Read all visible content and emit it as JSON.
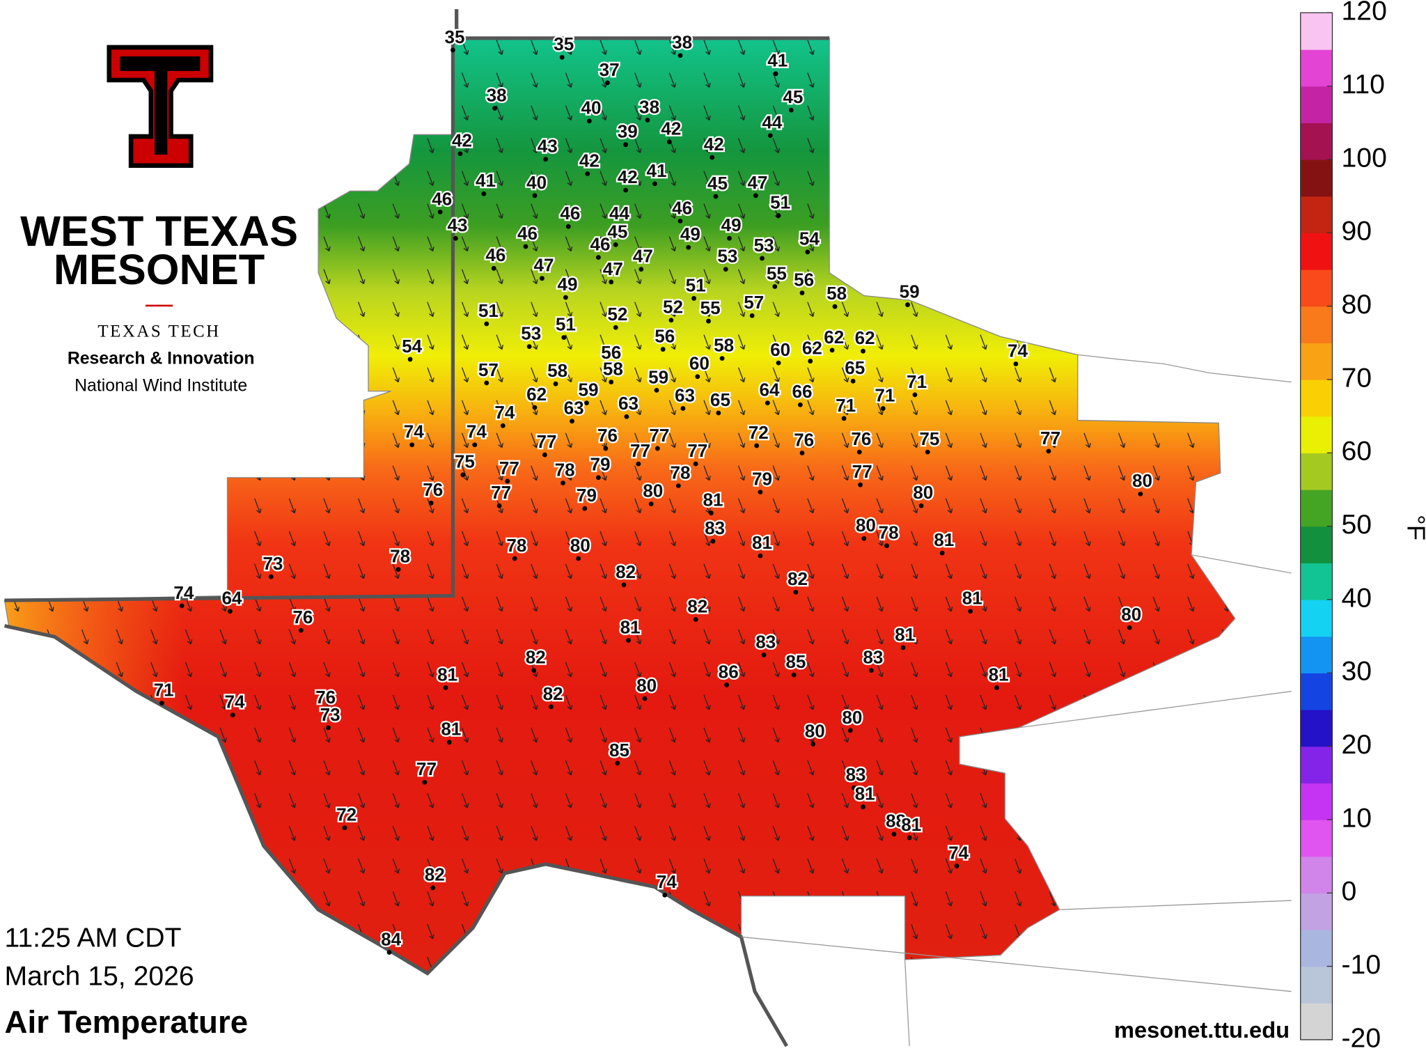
{
  "branding": {
    "name_line1": "WEST TEXAS",
    "name_line2": "MESONET",
    "org": "TEXAS TECH",
    "dept": "Research & Innovation",
    "institute": "National Wind Institute"
  },
  "timestamp": {
    "time": "11:25 AM CDT",
    "date": "March 15, 2026"
  },
  "product": "Air Temperature",
  "url": "mesonet.ttu.edu",
  "colorbar": {
    "unit": "°F",
    "lim": [
      -20,
      120
    ],
    "ticks": [
      120,
      110,
      100,
      90,
      80,
      70,
      60,
      50,
      40,
      30,
      20,
      10,
      0,
      -10,
      -20
    ],
    "colors": [
      "#d4d4d4",
      "#b9c6d9",
      "#a9b6e0",
      "#c2a2e2",
      "#d184ea",
      "#e054f0",
      "#c434f2",
      "#8424e8",
      "#2412c8",
      "#1444e2",
      "#1494f2",
      "#14d2f2",
      "#12c494",
      "#12903e",
      "#44a424",
      "#a4ca22",
      "#eaf004",
      "#f8d004",
      "#f8a214",
      "#f87a1a",
      "#f84a1a",
      "#f01212",
      "#c42412",
      "#841212",
      "#a41252",
      "#c424a4",
      "#e444d4",
      "#f8c4f2"
    ]
  },
  "station_temperatures": [
    35,
    35,
    38,
    41,
    37,
    45,
    38,
    40,
    38,
    44,
    39,
    42,
    42,
    43,
    42,
    42,
    42,
    41,
    41,
    40,
    45,
    47,
    51,
    46,
    46,
    44,
    46,
    49,
    43,
    46,
    45,
    46,
    49,
    53,
    54,
    46,
    47,
    47,
    47,
    53,
    55,
    56,
    49,
    51,
    58,
    59,
    51,
    52,
    52,
    55,
    57,
    53,
    51,
    56,
    62,
    62,
    54,
    56,
    58,
    60,
    62,
    74,
    57,
    58,
    58,
    59,
    60,
    65,
    71,
    62,
    59,
    63,
    63,
    63,
    65,
    64,
    66,
    71,
    71,
    74,
    74,
    74,
    77,
    76,
    77,
    77,
    77,
    72,
    76,
    76,
    75,
    77,
    75,
    77,
    78,
    79,
    78,
    79,
    77,
    80,
    76,
    77,
    79,
    80,
    81,
    80,
    83,
    80,
    78,
    81,
    81,
    78,
    80,
    73,
    78,
    82,
    82,
    74,
    64,
    81,
    82,
    80,
    76,
    81,
    81,
    83,
    82,
    85,
    83,
    81,
    86,
    81,
    71,
    74,
    76,
    73,
    82,
    80,
    81,
    80,
    80,
    85,
    77,
    83,
    81,
    72,
    88,
    81,
    74,
    82,
    74,
    84
  ]
}
